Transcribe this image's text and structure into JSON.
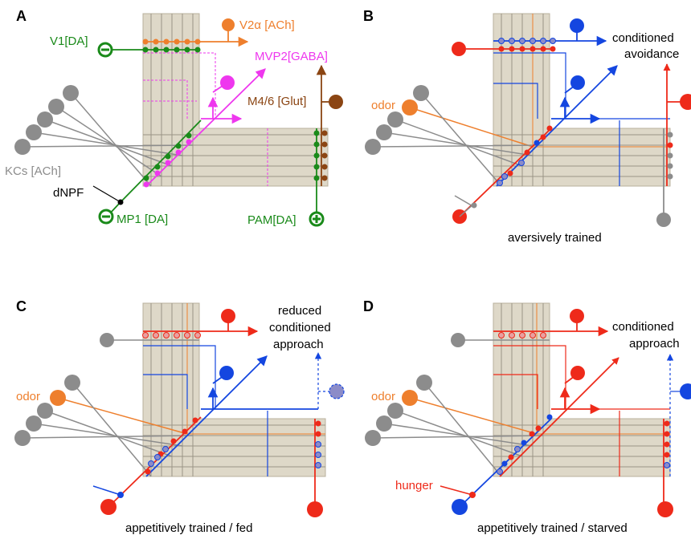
{
  "colors": {
    "dopamine": "#1a8a1a",
    "v2": "#ee7f2d",
    "mvp2": "#ee37ee",
    "m46": "#8b4513",
    "kc": "#8c8c8c",
    "red": "#ee2a1a",
    "blue": "#1446e0",
    "odor": "#ee7f2d",
    "neuropil": "#ded8c8"
  },
  "panel_a": {
    "letter": "A",
    "v1": "V1[DA]",
    "v2_prefix": "V2",
    "v2_greek": "α",
    "v2_suffix": "[ACh]",
    "mvp2": "MVP2[GABA]",
    "m46": "M4/6 [Glut]",
    "kcs": "KCs [ACh]",
    "dnpf": "dNPF",
    "mp1": "MP1 [DA]",
    "pam": "PAM[DA]"
  },
  "panel_b": {
    "letter": "B",
    "odor": "odor",
    "out_line1": "conditioned",
    "out_line2": "avoidance",
    "caption": "aversively trained"
  },
  "panel_c": {
    "letter": "C",
    "odor": "odor",
    "out_line1": "reduced",
    "out_line2": "conditioned",
    "out_line3": "approach",
    "caption": "appetitively trained / fed"
  },
  "panel_d": {
    "letter": "D",
    "odor": "odor",
    "hunger": "hunger",
    "out_line1": "conditioned",
    "out_line2": "approach",
    "caption": "appetitively trained / starved"
  }
}
